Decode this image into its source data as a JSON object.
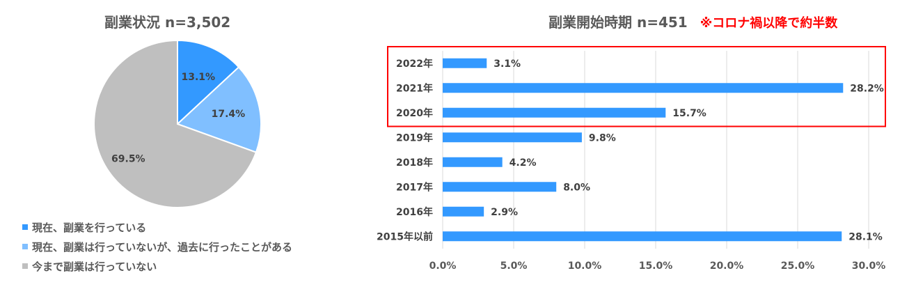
{
  "chart_data": [
    {
      "type": "pie",
      "title": "副業状況 n=3,502",
      "slices": [
        {
          "name": "現在、副業を行っている",
          "value": 13.1,
          "label": "13.1%",
          "color": "#3399ff"
        },
        {
          "name": "現在、副業は行っていないが、過去に行ったことがある",
          "value": 17.4,
          "label": "17.4%",
          "color": "#80bfff"
        },
        {
          "name": "今まで副業は行っていない",
          "value": 69.5,
          "label": "69.5%",
          "color": "#bfbfbf"
        }
      ],
      "legend_position": "bottom-left"
    },
    {
      "type": "bar",
      "orientation": "horizontal",
      "title": "副業開始時期 n=451",
      "note": "※コロナ禍以降で約半数",
      "categories": [
        "2022年",
        "2021年",
        "2020年",
        "2019年",
        "2018年",
        "2017年",
        "2016年",
        "2015年以前"
      ],
      "values": [
        3.1,
        28.2,
        15.7,
        9.8,
        4.2,
        8.0,
        2.9,
        28.1
      ],
      "value_labels": [
        "3.1%",
        "28.2%",
        "15.7%",
        "9.8%",
        "4.2%",
        "8.0%",
        "2.9%",
        "28.1%"
      ],
      "xlim": [
        0,
        30
      ],
      "xticks": [
        0,
        5,
        10,
        15,
        20,
        25,
        30
      ],
      "xtick_labels": [
        "0.0%",
        "5.0%",
        "10.0%",
        "15.0%",
        "20.0%",
        "25.0%",
        "30.0%"
      ],
      "grid": true,
      "bar_color": "#3399ff",
      "highlight_color": "#ff0000",
      "highlight_categories": [
        "2022年",
        "2021年",
        "2020年"
      ]
    }
  ]
}
